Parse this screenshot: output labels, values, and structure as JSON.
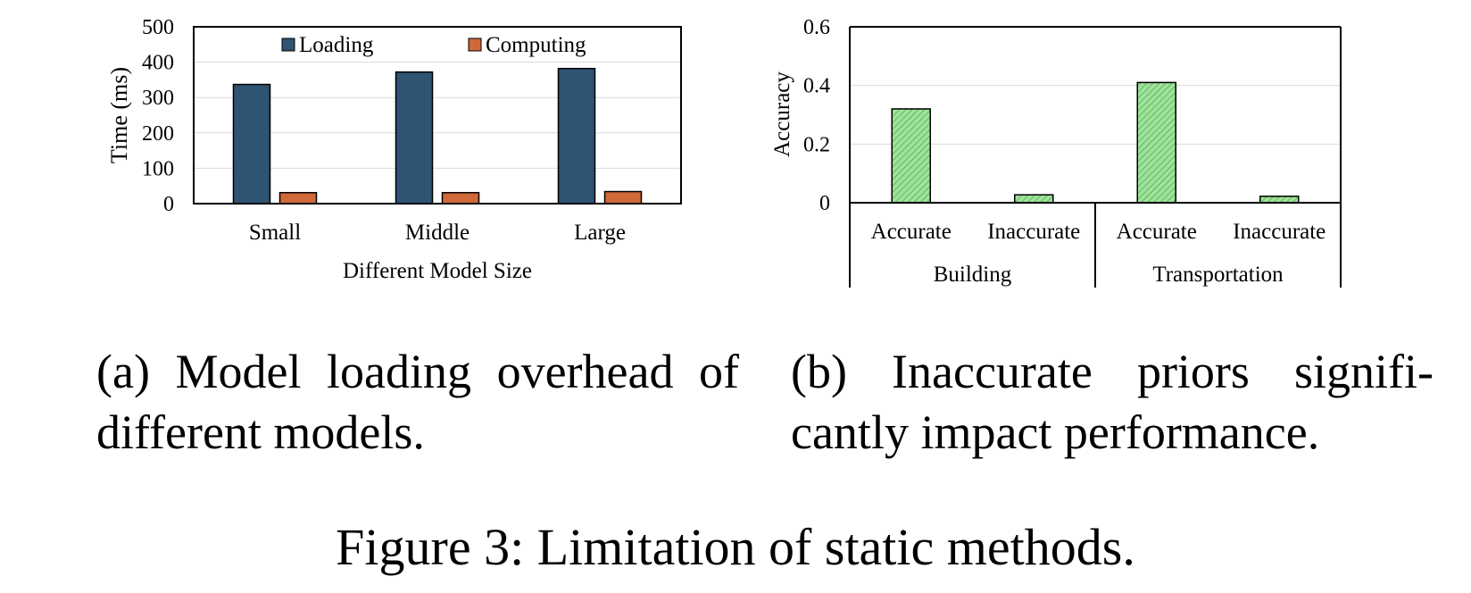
{
  "chart_data": [
    {
      "type": "bar",
      "panel": "a",
      "categories": [
        "Small",
        "Middle",
        "Large"
      ],
      "series": [
        {
          "name": "Loading",
          "values": [
            337,
            372,
            382
          ],
          "color": "#2f5373"
        },
        {
          "name": "Computing",
          "values": [
            31,
            31,
            34
          ],
          "color": "#d0693a"
        }
      ],
      "xlabel": "Different Model Size",
      "ylabel": "Time (ms)",
      "ylim": [
        0,
        500
      ],
      "yticks": [
        0,
        100,
        200,
        300,
        400,
        500
      ],
      "grid": true,
      "legend": "top-center"
    },
    {
      "type": "bar",
      "panel": "b",
      "groups": [
        {
          "name": "Building",
          "categories": [
            "Accurate",
            "Inaccurate"
          ],
          "values": [
            0.32,
            0.027
          ]
        },
        {
          "name": "Transportation",
          "categories": [
            "Accurate",
            "Inaccurate"
          ],
          "values": [
            0.41,
            0.022
          ]
        }
      ],
      "color": "#9fe29a",
      "ylabel": "Accuracy",
      "ylim": [
        0,
        0.6
      ],
      "yticks": [
        "0",
        "0.2",
        "0.4",
        "0.6"
      ],
      "grid": true
    }
  ],
  "captions": {
    "a": "(a) Model loading overhead of different models.",
    "b": "(b) Inaccurate priors signifi-cantly impact performance.",
    "figure": "Figure 3: Limitation of static methods."
  }
}
